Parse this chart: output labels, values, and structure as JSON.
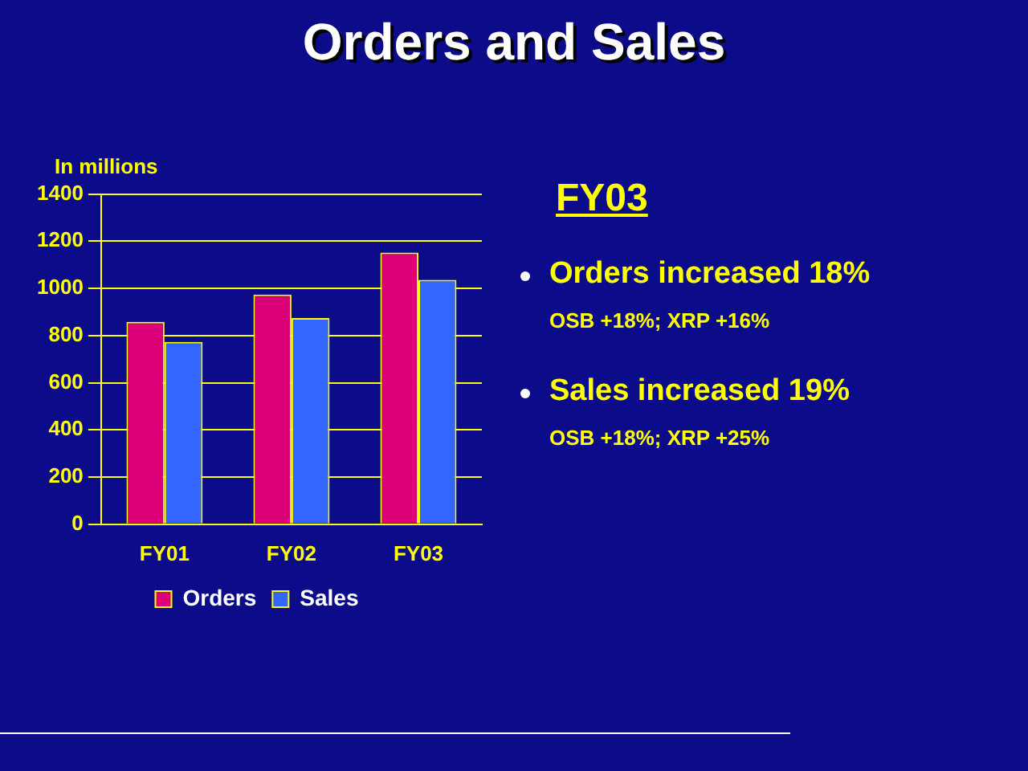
{
  "chart_data": {
    "type": "bar",
    "title": "Orders and Sales",
    "ylabel": "In millions",
    "categories": [
      "FY01",
      "FY02",
      "FY03"
    ],
    "series": [
      {
        "name": "Orders",
        "color": "#dc0078",
        "values": [
          858,
          974,
          1152
        ]
      },
      {
        "name": "Sales",
        "color": "#3366ff",
        "values": [
          773,
          874,
          1036
        ]
      }
    ],
    "ylim": [
      0,
      1400
    ],
    "yticks": [
      0,
      200,
      400,
      600,
      800,
      1000,
      1200,
      1400
    ],
    "grid": "y",
    "legend": "bottom",
    "annotations": [
      "FY03",
      "Orders increased 18%",
      "OSB +18%; XRP +16%",
      "Sales increased 19%",
      "OSB +18%; XRP +25%"
    ]
  }
}
